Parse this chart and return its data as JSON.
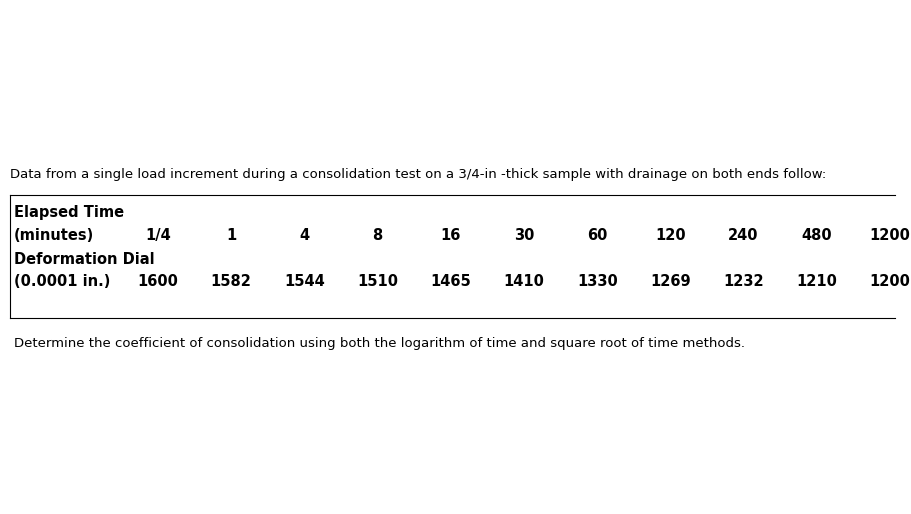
{
  "intro_text": "Data from a single load increment during a consolidation test on a 3/4-in -thick sample with drainage on both ends follow:",
  "label_row1": "Elapsed Time",
  "label_row2": "(minutes)",
  "label_row3": "Deformation Dial",
  "label_row4": "(0.0001 in.)",
  "time_values": [
    "1/4",
    "1",
    "4",
    "8",
    "16",
    "30",
    "60",
    "120",
    "240",
    "480",
    "1200"
  ],
  "dial_values": [
    "1600",
    "1582",
    "1544",
    "1510",
    "1465",
    "1410",
    "1330",
    "1269",
    "1232",
    "1210",
    "1200"
  ],
  "footer_text": "Determine the coefficient of consolidation using both the logarithm of time and square root of time methods.",
  "bg_color": "#ffffff",
  "text_color": "#000000",
  "font_size_intro": 9.5,
  "font_size_label": 10.5,
  "font_size_values": 10.5,
  "font_size_footer": 9.5
}
